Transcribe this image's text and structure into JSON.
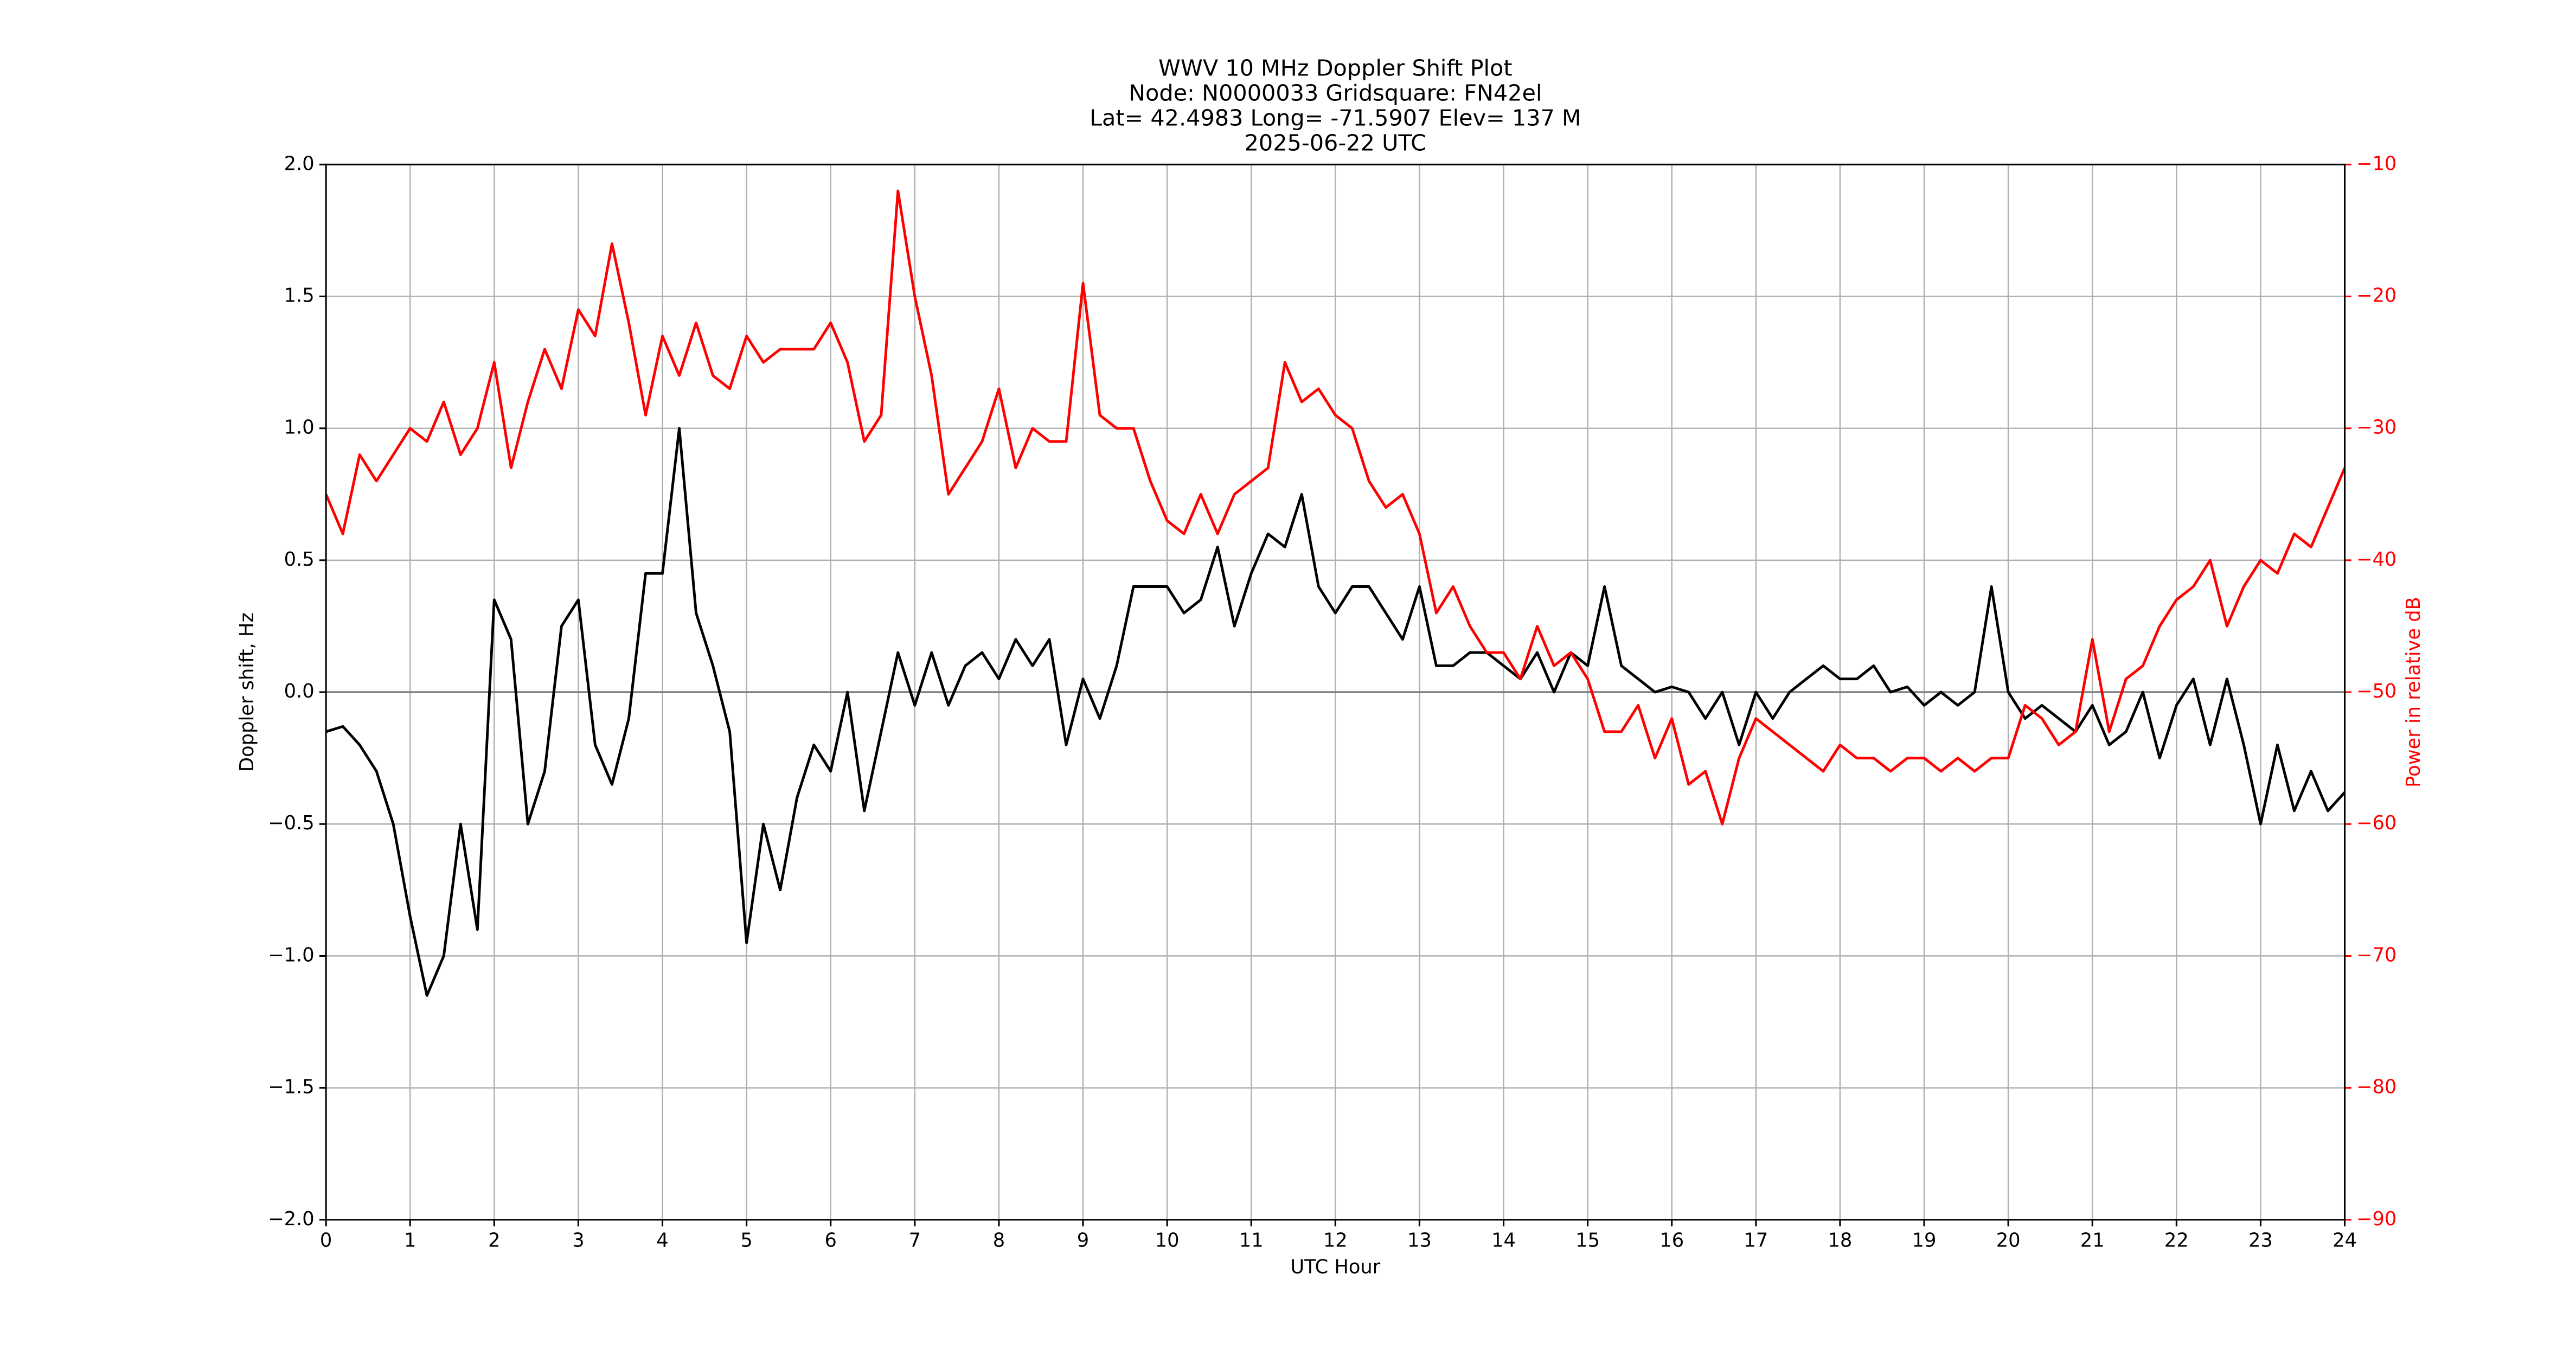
{
  "chart_data": {
    "type": "line",
    "title": [
      "WWV 10 MHz Doppler Shift Plot",
      "Node:  N0000033     Gridsquare:  FN42el",
      "Lat= 42.4983    Long= -71.5907    Elev= 137 M",
      "2025-06-22  UTC"
    ],
    "xlabel": "UTC Hour",
    "ylabel": "Doppler shift, Hz",
    "y2label": "Power in relative dB",
    "x": [
      0,
      0.2,
      0.4,
      0.6,
      0.8,
      1,
      1.2,
      1.4,
      1.6,
      1.8,
      2,
      2.2,
      2.4,
      2.6,
      2.8,
      3,
      3.2,
      3.4,
      3.6,
      3.8,
      4,
      4.2,
      4.4,
      4.6,
      4.8,
      5,
      5.2,
      5.4,
      5.6,
      5.8,
      6,
      6.2,
      6.4,
      6.6,
      6.8,
      7,
      7.2,
      7.4,
      7.6,
      7.8,
      8,
      8.2,
      8.4,
      8.6,
      8.8,
      9,
      9.2,
      9.4,
      9.6,
      9.8,
      10,
      10.2,
      10.4,
      10.6,
      10.8,
      11,
      11.2,
      11.4,
      11.6,
      11.8,
      12,
      12.2,
      12.4,
      12.6,
      12.8,
      13,
      13.2,
      13.4,
      13.6,
      13.8,
      14,
      14.2,
      14.4,
      14.6,
      14.8,
      15,
      15.2,
      15.4,
      15.6,
      15.8,
      16,
      16.2,
      16.4,
      16.6,
      16.8,
      17,
      17.2,
      17.4,
      17.6,
      17.8,
      18,
      18.2,
      18.4,
      18.6,
      18.8,
      19,
      19.2,
      19.4,
      19.6,
      19.8,
      20,
      20.2,
      20.4,
      20.6,
      20.8,
      21,
      21.2,
      21.4,
      21.6,
      21.8,
      22,
      22.2,
      22.4,
      22.6,
      22.8,
      23,
      23.2,
      23.4,
      23.6,
      23.8,
      24
    ],
    "series": [
      {
        "name": "Doppler shift",
        "color": "#000000",
        "values": [
          -0.15,
          -0.13,
          -0.2,
          -0.3,
          -0.5,
          -0.85,
          -1.15,
          -1.0,
          -0.5,
          -0.9,
          0.35,
          0.2,
          -0.5,
          -0.3,
          0.25,
          0.35,
          -0.2,
          -0.35,
          -0.1,
          0.45,
          0.45,
          1.0,
          0.3,
          0.1,
          -0.15,
          -0.95,
          -0.5,
          -0.75,
          -0.4,
          -0.2,
          -0.3,
          0.0,
          -0.45,
          -0.15,
          0.15,
          -0.05,
          0.15,
          -0.05,
          0.1,
          0.15,
          0.05,
          0.2,
          0.1,
          0.2,
          -0.2,
          0.05,
          -0.1,
          0.1,
          0.4,
          0.4,
          0.4,
          0.3,
          0.35,
          0.55,
          0.25,
          0.45,
          0.6,
          0.55,
          0.75,
          0.4,
          0.3,
          0.4,
          0.4,
          0.3,
          0.2,
          0.4,
          0.1,
          0.1,
          0.15,
          0.15,
          0.1,
          0.05,
          0.15,
          0.0,
          0.15,
          0.1,
          0.4,
          0.1,
          0.05,
          0.0,
          0.02,
          0.0,
          -0.1,
          0.0,
          -0.2,
          0.0,
          -0.1,
          0.0,
          0.05,
          0.1,
          0.05,
          0.05,
          0.1,
          0.0,
          0.02,
          -0.05,
          0.0,
          -0.05,
          0.0,
          0.4,
          0.0,
          -0.1,
          -0.05,
          -0.1,
          -0.15,
          -0.05,
          -0.2,
          -0.15,
          0.0,
          -0.25,
          -0.05,
          0.05,
          -0.2,
          0.05,
          -0.2,
          -0.5,
          -0.2,
          -0.45,
          -0.3,
          -0.45,
          -0.38
        ]
      },
      {
        "name": "Power",
        "color": "#ff0000",
        "axis": "y2",
        "values": [
          -35,
          -38,
          -32,
          -34,
          -32,
          -30,
          -31,
          -28,
          -32,
          -30,
          -25,
          -33,
          -28,
          -24,
          -27,
          -21,
          -23,
          -16,
          -22,
          -29,
          -23,
          -26,
          -22,
          -26,
          -27,
          -23,
          -25,
          -24,
          -24,
          -24,
          -22,
          -25,
          -31,
          -29,
          -12,
          -20,
          -26,
          -35,
          -33,
          -31,
          -27,
          -33,
          -30,
          -31,
          -31,
          -19,
          -29,
          -30,
          -30,
          -34,
          -37,
          -38,
          -35,
          -38,
          -35,
          -34,
          -33,
          -25,
          -28,
          -27,
          -29,
          -30,
          -34,
          -36,
          -35,
          -38,
          -44,
          -42,
          -45,
          -47,
          -47,
          -49,
          -45,
          -48,
          -47,
          -49,
          -53,
          -53,
          -51,
          -55,
          -52,
          -57,
          -56,
          -60,
          -55,
          -52,
          -53,
          -54,
          -55,
          -56,
          -54,
          -55,
          -55,
          -56,
          -55,
          -55,
          -56,
          -55,
          -56,
          -55,
          -55,
          -51,
          -52,
          -54,
          -53,
          -46,
          -53,
          -49,
          -48,
          -45,
          -43,
          -42,
          -40,
          -45,
          -42,
          -40,
          -41,
          -38,
          -39,
          -36,
          -33
        ]
      }
    ],
    "xlim": [
      0,
      24
    ],
    "xticks": [
      0,
      1,
      2,
      3,
      4,
      5,
      6,
      7,
      8,
      9,
      10,
      11,
      12,
      13,
      14,
      15,
      16,
      17,
      18,
      19,
      20,
      21,
      22,
      23,
      24
    ],
    "ylim": [
      -2,
      2
    ],
    "yticks": [
      {
        "value": -2,
        "label": "−2.0"
      },
      {
        "value": -1.5,
        "label": "−1.5"
      },
      {
        "value": -1,
        "label": "−1.0"
      },
      {
        "value": -0.5,
        "label": "−0.5"
      },
      {
        "value": 0,
        "label": "0.0"
      },
      {
        "value": 0.5,
        "label": "0.5"
      },
      {
        "value": 1,
        "label": "1.0"
      },
      {
        "value": 1.5,
        "label": "1.5"
      },
      {
        "value": 2,
        "label": "2.0"
      }
    ],
    "y2lim": [
      -90,
      -10
    ],
    "y2ticks": [
      {
        "value": -90,
        "label": "−90"
      },
      {
        "value": -80,
        "label": "−80"
      },
      {
        "value": -70,
        "label": "−70"
      },
      {
        "value": -60,
        "label": "−60"
      },
      {
        "value": -50,
        "label": "−50"
      },
      {
        "value": -40,
        "label": "−40"
      },
      {
        "value": -30,
        "label": "−30"
      },
      {
        "value": -20,
        "label": "−20"
      },
      {
        "value": -10,
        "label": "−10"
      }
    ],
    "grid": true,
    "zero_line": true
  }
}
